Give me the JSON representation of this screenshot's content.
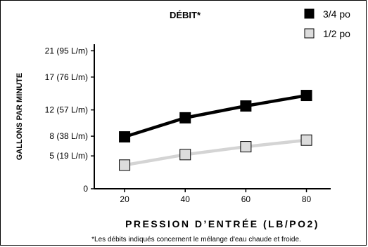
{
  "chart_data": {
    "type": "line",
    "title": "DÉBIT*",
    "xlabel": "PRESSION D’ENTRÉE (LB/PO2)",
    "ylabel": "GALLONS PAR MINUTE",
    "x": [
      20,
      40,
      60,
      80
    ],
    "x_ticks": [
      "20",
      "40",
      "60",
      "80"
    ],
    "xlim": [
      10,
      88
    ],
    "ylim": [
      0,
      22
    ],
    "y_ticks": [
      {
        "value": 0,
        "label": "0"
      },
      {
        "value": 5,
        "label": "5 (19 L/m)"
      },
      {
        "value": 8,
        "label": "8 (38 L/m)"
      },
      {
        "value": 12,
        "label": "12 (57 L/m)"
      },
      {
        "value": 17,
        "label": "17 (76 L/m)"
      },
      {
        "value": 21,
        "label": "21 (95 L/m)"
      }
    ],
    "series": [
      {
        "name": "3/4 po",
        "values": [
          7.9,
          10.8,
          12.6,
          14.2
        ],
        "color": "#000000",
        "marker_fill": "#000000"
      },
      {
        "name": "1/2 po",
        "values": [
          3.6,
          5.2,
          6.4,
          7.4
        ],
        "color": "#d4d4d4",
        "marker_fill": "#dcdcdc"
      }
    ],
    "grid": false,
    "legend_position": "top-right",
    "footnote": "*Les débits indiqués concernent le mélange d'eau chaude et froide."
  }
}
